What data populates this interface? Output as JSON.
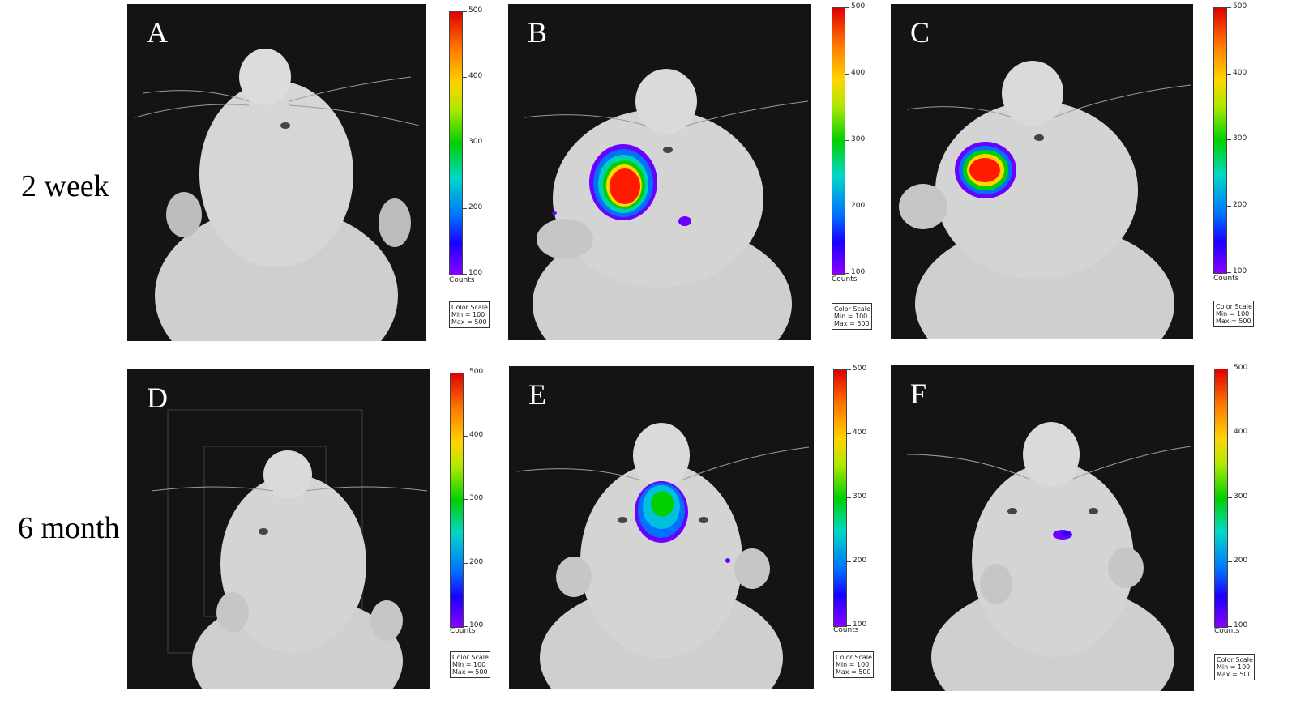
{
  "row_labels": [
    "2 week",
    "6 month"
  ],
  "panels": [
    {
      "letter": "A",
      "signal": "none"
    },
    {
      "letter": "B",
      "signal": "strong"
    },
    {
      "letter": "C",
      "signal": "strong"
    },
    {
      "letter": "D",
      "signal": "none"
    },
    {
      "letter": "E",
      "signal": "moderate"
    },
    {
      "letter": "F",
      "signal": "weak"
    }
  ],
  "colorbar": {
    "ticks": [
      "500",
      "400",
      "300",
      "200",
      "100"
    ],
    "unit": "Counts",
    "scale_title": "Color Scale",
    "scale_min": "Min = 100",
    "scale_max": "Max = 500"
  },
  "colors": {
    "background": "#141414",
    "signal_high": "#ff1a00",
    "signal_mid": "#00d000",
    "signal_low": "#6a00ff"
  }
}
